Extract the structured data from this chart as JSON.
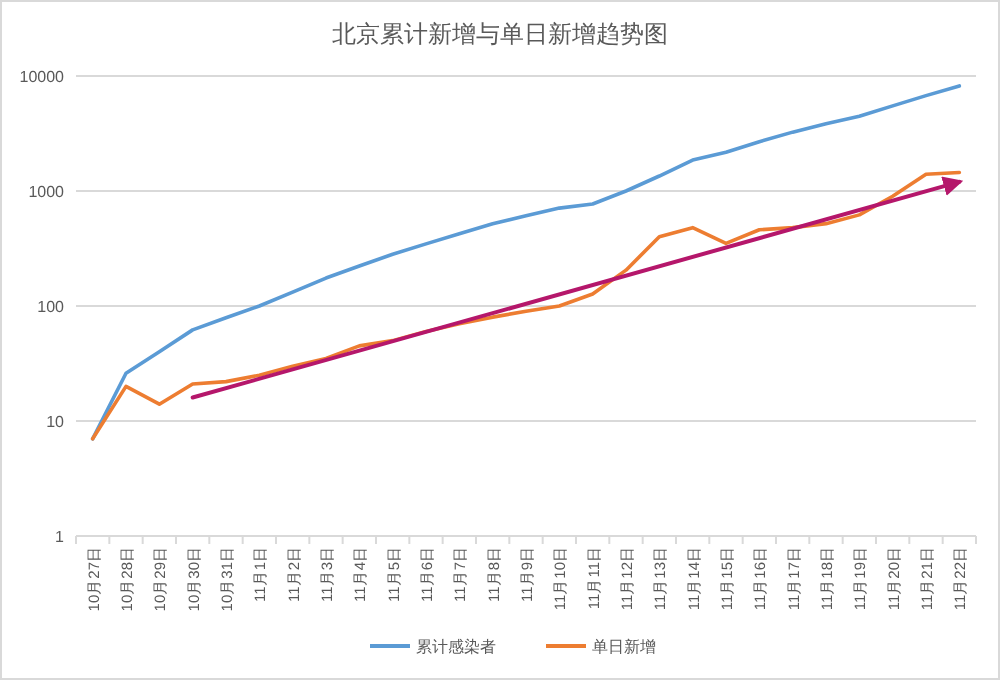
{
  "chart_data": {
    "type": "line",
    "title": "北京累计新增与单日新增趋势图",
    "categories": [
      "10月27日",
      "10月28日",
      "10月29日",
      "10月30日",
      "10月31日",
      "11月1日",
      "11月2日",
      "11月3日",
      "11月4日",
      "11月5日",
      "11月6日",
      "11月7日",
      "11月8日",
      "11月9日",
      "11月10日",
      "11月11日",
      "11月12日",
      "11月13日",
      "11月14日",
      "11月15日",
      "11月16日",
      "11月17日",
      "11月18日",
      "11月19日",
      "11月20日",
      "11月21日",
      "11月22日"
    ],
    "series": [
      {
        "name": "累计感染者",
        "color": "#5b9bd5",
        "values": [
          7,
          26,
          40,
          62,
          79,
          100,
          132,
          175,
          223,
          282,
          347,
          425,
          519,
          610,
          710,
          771,
          1000,
          1350,
          1860,
          2170,
          2680,
          3250,
          3850,
          4460,
          5500,
          6750,
          8200
        ]
      },
      {
        "name": "单日新增",
        "color": "#ed7d31",
        "values": [
          7,
          20,
          14,
          21,
          22,
          25,
          30,
          35,
          45,
          50,
          60,
          70,
          80,
          90,
          100,
          127,
          205,
          400,
          480,
          350,
          460,
          480,
          520,
          620,
          900,
          1400,
          1450
        ]
      },
      {
        "type": "line",
        "color": "#b5176b",
        "values": [
          null,
          null,
          null,
          16,
          null,
          null,
          null,
          null,
          null,
          null,
          null,
          null,
          null,
          null,
          null,
          null,
          null,
          null,
          null,
          null,
          null,
          null,
          null,
          null,
          null,
          null,
          1200
        ]
      }
    ],
    "log": true,
    "ylim": [
      1,
      10000
    ],
    "yticks": [
      1,
      10,
      100,
      1000,
      10000
    ],
    "grid": "y",
    "legend": "bottom"
  }
}
